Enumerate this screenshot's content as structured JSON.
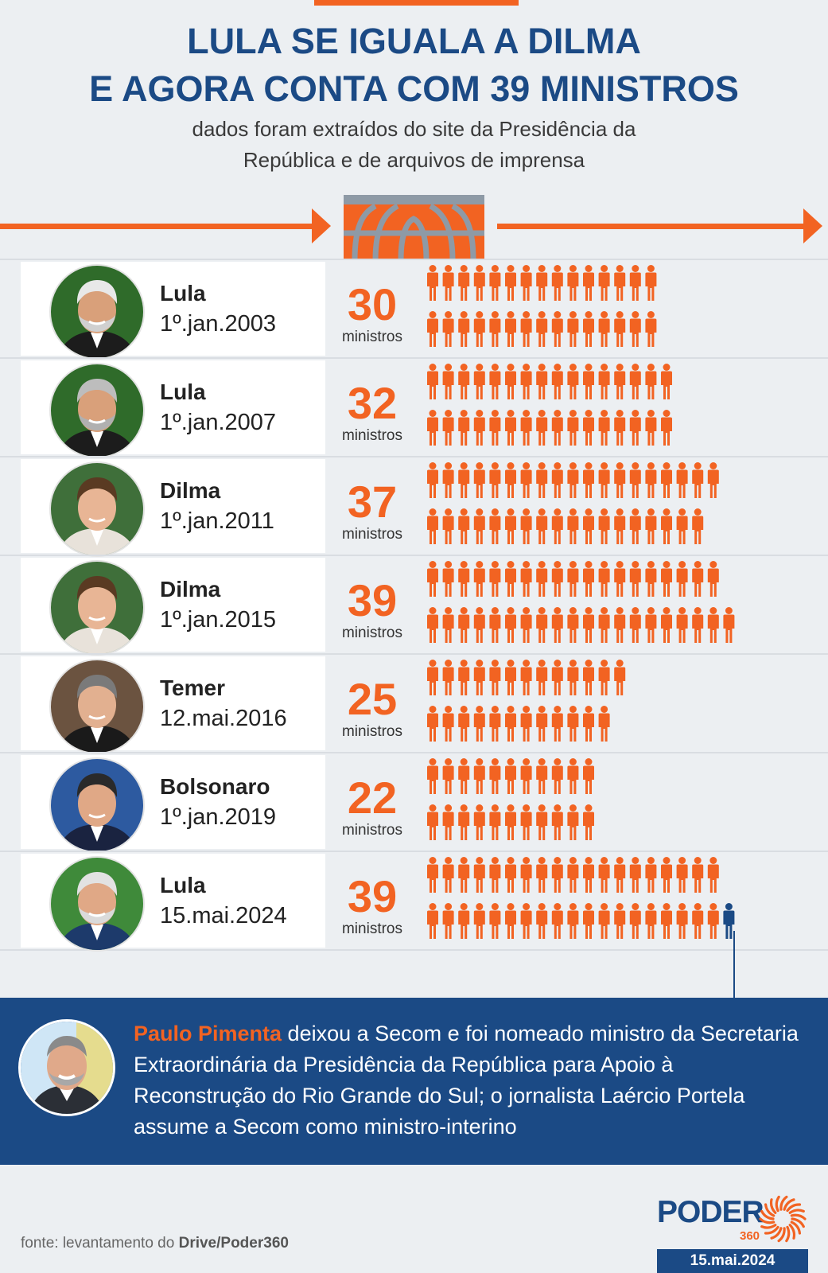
{
  "header": {
    "title_line1": "LULA SE IGUALA A DILMA",
    "title_line2": "E AGORA CONTA COM 39 MINISTROS",
    "subtitle_line1": "dados foram extraídos do site da Presidência da",
    "subtitle_line2": "República e de arquivos de imprensa"
  },
  "colors": {
    "accent": "#f26322",
    "navy": "#1b4a85",
    "background": "#eceff2"
  },
  "chart_data": {
    "type": "bar",
    "categories": [
      "Lula 1º.jan.2003",
      "Lula 1º.jan.2007",
      "Dilma 1º.jan.2011",
      "Dilma 1º.jan.2015",
      "Temer 12.mai.2016",
      "Bolsonaro 1º.jan.2019",
      "Lula 15.mai.2024"
    ],
    "values": [
      30,
      32,
      37,
      39,
      25,
      22,
      39
    ],
    "unit": "ministros",
    "rows": [
      {
        "name": "Lula",
        "date": "1º.jan.2003",
        "value": 30,
        "label": "ministros",
        "highlight_last": false
      },
      {
        "name": "Lula",
        "date": "1º.jan.2007",
        "value": 32,
        "label": "ministros",
        "highlight_last": false
      },
      {
        "name": "Dilma",
        "date": "1º.jan.2011",
        "value": 37,
        "label": "ministros",
        "highlight_last": false
      },
      {
        "name": "Dilma",
        "date": "1º.jan.2015",
        "value": 39,
        "label": "ministros",
        "highlight_last": false
      },
      {
        "name": "Temer",
        "date": "12.mai.2016",
        "value": 25,
        "label": "ministros",
        "highlight_last": false
      },
      {
        "name": "Bolsonaro",
        "date": "1º.jan.2019",
        "value": 22,
        "label": "ministros",
        "highlight_last": false
      },
      {
        "name": "Lula",
        "date": "15.mai.2024",
        "value": 39,
        "label": "ministros",
        "highlight_last": true
      }
    ]
  },
  "note": {
    "highlight": "Paulo Pimenta",
    "text": " deixou a Secom e foi nomeado ministro da Secretaria Extraordinária da Presidência da República para Apoio à Reconstrução do Rio Grande do Sul; o jornalista Laércio Portela assume a Secom como ministro-interino"
  },
  "footer": {
    "source_prefix": "fonte: levantamento do ",
    "source_bold": "Drive/Poder360",
    "logo_word": "PODER",
    "logo_sub": "360",
    "date": "15.mai.2024"
  }
}
